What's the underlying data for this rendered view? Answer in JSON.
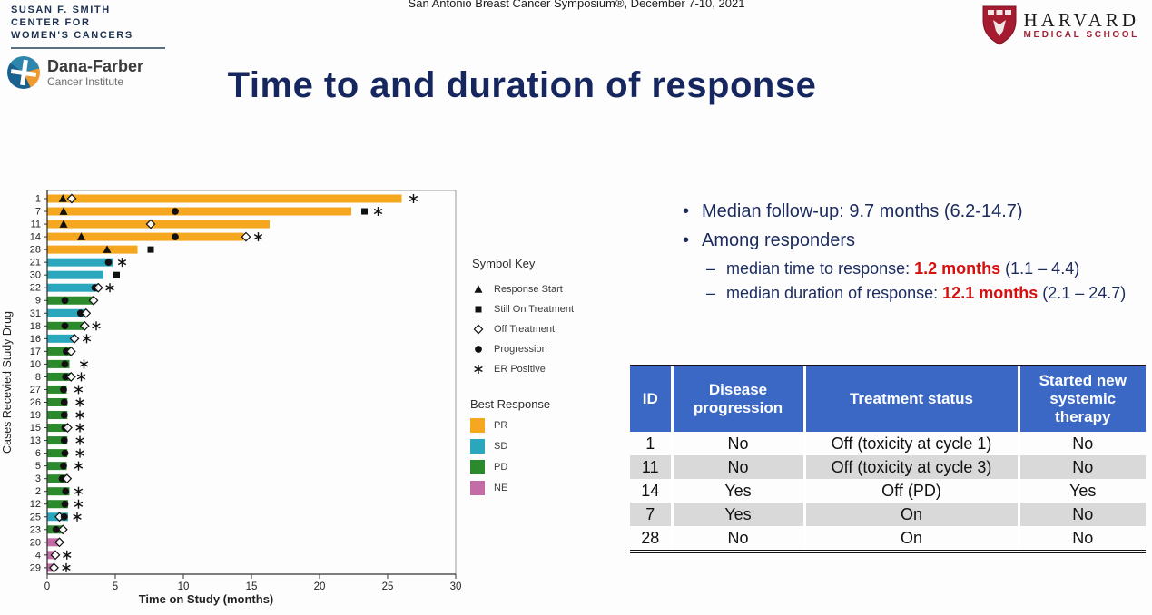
{
  "header": {
    "conference": "San Antonio Breast Cancer Symposium®, December 7-10, 2021",
    "title": "Time to and duration of response",
    "susan_lines": [
      "SUSAN F. SMITH",
      "CENTER FOR",
      "WOMEN'S CANCERS"
    ],
    "dana_farber": {
      "name": "Dana-Farber",
      "sub": "Cancer Institute"
    },
    "harvard": {
      "name": "HARVARD",
      "sub": "MEDICAL SCHOOL"
    }
  },
  "bullets": [
    {
      "lead": "•",
      "indent": false,
      "parts": [
        {
          "text": "Median follow-up:  9.7 months (6.2-14.7)",
          "style": "normal"
        }
      ]
    },
    {
      "lead": "•",
      "indent": false,
      "parts": [
        {
          "text": "Among responders",
          "style": "normal"
        }
      ]
    },
    {
      "lead": "–",
      "indent": true,
      "parts": [
        {
          "text": "median time to response:  ",
          "style": "normal"
        },
        {
          "text": "1.2 months",
          "style": "red-bold"
        },
        {
          "text": " (1.1 – 4.4)",
          "style": "normal"
        }
      ]
    },
    {
      "lead": "–",
      "indent": true,
      "parts": [
        {
          "text": "median duration of response:  ",
          "style": "normal"
        },
        {
          "text": "12.1 months",
          "style": "red-bold"
        },
        {
          "text": " (2.1 – 24.7)",
          "style": "normal"
        }
      ]
    }
  ],
  "symbol_key": {
    "title": "Symbol Key",
    "items": [
      {
        "marker": "triangle",
        "label": "Response Start"
      },
      {
        "marker": "square",
        "label": "Still On Treatment"
      },
      {
        "marker": "open-diamond",
        "label": "Off Treatment"
      },
      {
        "marker": "circle",
        "label": "Progression"
      },
      {
        "marker": "asterisk",
        "label": "ER Positive"
      }
    ]
  },
  "best_response": {
    "title": "Best Response",
    "items": [
      {
        "label": "PR",
        "color": "#F5A71F"
      },
      {
        "label": "SD",
        "color": "#2BA7BD"
      },
      {
        "label": "PD",
        "color": "#2B8A2B"
      },
      {
        "label": "NE",
        "color": "#C46CA6"
      }
    ]
  },
  "chart_data": {
    "type": "swimmer-bar",
    "xlabel": "Time on Study (months)",
    "ylabel": "Cases Recevied Study Drug",
    "xlim": [
      0,
      30
    ],
    "xticks": [
      0,
      5,
      10,
      15,
      20,
      25,
      30
    ],
    "colors": {
      "PR": "#F5A71F",
      "SD": "#2BA7BD",
      "PD": "#2B8A2B",
      "NE": "#C46CA6"
    },
    "rows": [
      {
        "id": "1",
        "response": "PR",
        "bar": 26.0,
        "markers": [
          {
            "t": "triangle",
            "x": 1.15
          },
          {
            "t": "open-diamond",
            "x": 1.8
          },
          {
            "t": "asterisk",
            "x": 26.9
          }
        ]
      },
      {
        "id": "7",
        "response": "PR",
        "bar": 22.3,
        "markers": [
          {
            "t": "triangle",
            "x": 1.2
          },
          {
            "t": "circle",
            "x": 9.4
          },
          {
            "t": "square",
            "x": 23.3
          },
          {
            "t": "asterisk",
            "x": 24.3
          }
        ]
      },
      {
        "id": "11",
        "response": "PR",
        "bar": 16.3,
        "markers": [
          {
            "t": "triangle",
            "x": 1.2
          },
          {
            "t": "open-diamond",
            "x": 7.6
          }
        ]
      },
      {
        "id": "14",
        "response": "PR",
        "bar": 14.4,
        "markers": [
          {
            "t": "triangle",
            "x": 2.5
          },
          {
            "t": "circle",
            "x": 9.4
          },
          {
            "t": "open-diamond",
            "x": 14.6
          },
          {
            "t": "asterisk",
            "x": 15.5
          }
        ]
      },
      {
        "id": "28",
        "response": "PR",
        "bar": 6.6,
        "markers": [
          {
            "t": "triangle",
            "x": 4.4
          },
          {
            "t": "square",
            "x": 7.6
          }
        ]
      },
      {
        "id": "21",
        "response": "SD",
        "bar": 4.8,
        "markers": [
          {
            "t": "circle",
            "x": 4.5
          },
          {
            "t": "asterisk",
            "x": 5.5
          }
        ]
      },
      {
        "id": "30",
        "response": "SD",
        "bar": 4.1,
        "markers": [
          {
            "t": "square",
            "x": 5.1
          }
        ]
      },
      {
        "id": "22",
        "response": "SD",
        "bar": 3.7,
        "markers": [
          {
            "t": "circle",
            "x": 3.5
          },
          {
            "t": "open-diamond",
            "x": 3.75
          },
          {
            "t": "asterisk",
            "x": 4.6
          }
        ]
      },
      {
        "id": "9",
        "response": "PD",
        "bar": 3.4,
        "markers": [
          {
            "t": "circle",
            "x": 1.3
          },
          {
            "t": "open-diamond",
            "x": 3.4
          }
        ]
      },
      {
        "id": "31",
        "response": "SD",
        "bar": 2.8,
        "markers": [
          {
            "t": "circle",
            "x": 2.45
          },
          {
            "t": "open-diamond",
            "x": 2.85
          }
        ]
      },
      {
        "id": "18",
        "response": "PD",
        "bar": 2.7,
        "markers": [
          {
            "t": "circle",
            "x": 1.3
          },
          {
            "t": "open-diamond",
            "x": 2.75
          },
          {
            "t": "asterisk",
            "x": 3.6
          }
        ]
      },
      {
        "id": "16",
        "response": "SD",
        "bar": 2.0,
        "markers": [
          {
            "t": "open-diamond",
            "x": 2.0
          },
          {
            "t": "asterisk",
            "x": 2.9
          }
        ]
      },
      {
        "id": "17",
        "response": "PD",
        "bar": 1.7,
        "markers": [
          {
            "t": "circle",
            "x": 1.4
          },
          {
            "t": "open-diamond",
            "x": 1.75
          }
        ]
      },
      {
        "id": "10",
        "response": "PD",
        "bar": 1.6,
        "markers": [
          {
            "t": "circle",
            "x": 1.3
          },
          {
            "t": "asterisk",
            "x": 2.7
          }
        ]
      },
      {
        "id": "8",
        "response": "PD",
        "bar": 1.7,
        "markers": [
          {
            "t": "circle",
            "x": 1.35
          },
          {
            "t": "open-diamond",
            "x": 1.75
          },
          {
            "t": "asterisk",
            "x": 2.5
          }
        ]
      },
      {
        "id": "27",
        "response": "PD",
        "bar": 1.4,
        "markers": [
          {
            "t": "circle",
            "x": 1.2
          },
          {
            "t": "asterisk",
            "x": 2.3
          }
        ]
      },
      {
        "id": "26",
        "response": "PD",
        "bar": 1.45,
        "markers": [
          {
            "t": "circle",
            "x": 1.25
          },
          {
            "t": "asterisk",
            "x": 2.4
          }
        ]
      },
      {
        "id": "19",
        "response": "PD",
        "bar": 1.45,
        "markers": [
          {
            "t": "circle",
            "x": 1.25
          },
          {
            "t": "asterisk",
            "x": 2.4
          }
        ]
      },
      {
        "id": "15",
        "response": "PD",
        "bar": 1.45,
        "markers": [
          {
            "t": "circle",
            "x": 1.3
          },
          {
            "t": "open-diamond",
            "x": 1.5
          },
          {
            "t": "asterisk",
            "x": 2.4
          }
        ]
      },
      {
        "id": "13",
        "response": "PD",
        "bar": 1.45,
        "markers": [
          {
            "t": "circle",
            "x": 1.25
          },
          {
            "t": "asterisk",
            "x": 2.4
          }
        ]
      },
      {
        "id": "6",
        "response": "PD",
        "bar": 1.45,
        "markers": [
          {
            "t": "circle",
            "x": 1.3
          },
          {
            "t": "asterisk",
            "x": 2.4
          }
        ]
      },
      {
        "id": "5",
        "response": "PD",
        "bar": 1.4,
        "markers": [
          {
            "t": "circle",
            "x": 1.2
          },
          {
            "t": "asterisk",
            "x": 2.3
          }
        ]
      },
      {
        "id": "3",
        "response": "PD",
        "bar": 1.4,
        "markers": [
          {
            "t": "circle",
            "x": 1.1
          },
          {
            "t": "open-diamond",
            "x": 1.45
          }
        ]
      },
      {
        "id": "2",
        "response": "PD",
        "bar": 1.6,
        "markers": [
          {
            "t": "circle",
            "x": 1.35
          },
          {
            "t": "asterisk",
            "x": 2.3
          }
        ]
      },
      {
        "id": "12",
        "response": "PD",
        "bar": 1.5,
        "markers": [
          {
            "t": "circle",
            "x": 1.3
          },
          {
            "t": "asterisk",
            "x": 2.3
          }
        ]
      },
      {
        "id": "25",
        "response": "SD",
        "bar": 1.5,
        "markers": [
          {
            "t": "open-diamond",
            "x": 0.9
          },
          {
            "t": "circle",
            "x": 1.25
          },
          {
            "t": "asterisk",
            "x": 2.2
          }
        ]
      },
      {
        "id": "23",
        "response": "PD",
        "bar": 1.1,
        "markers": [
          {
            "t": "circle",
            "x": 0.65
          },
          {
            "t": "open-diamond",
            "x": 1.15
          }
        ]
      },
      {
        "id": "20",
        "response": "NE",
        "bar": 0.85,
        "markers": [
          {
            "t": "open-diamond",
            "x": 0.9
          }
        ]
      },
      {
        "id": "4",
        "response": "NE",
        "bar": 0.55,
        "markers": [
          {
            "t": "open-diamond",
            "x": 0.6
          },
          {
            "t": "asterisk",
            "x": 1.45
          }
        ]
      },
      {
        "id": "29",
        "response": "NE",
        "bar": 0.4,
        "markers": [
          {
            "t": "open-diamond",
            "x": 0.5
          },
          {
            "t": "asterisk",
            "x": 1.4
          }
        ]
      }
    ]
  },
  "table": {
    "headers": [
      "ID",
      "Disease progression",
      "Treatment status",
      "Started new systemic therapy"
    ],
    "rows": [
      [
        "1",
        "No",
        "Off (toxicity at cycle 1)",
        "No"
      ],
      [
        "11",
        "No",
        "Off (toxicity at cycle 3)",
        "No"
      ],
      [
        "14",
        "Yes",
        "Off (PD)",
        "Yes"
      ],
      [
        "7",
        "Yes",
        "On",
        "No"
      ],
      [
        "28",
        "No",
        "On",
        "No"
      ]
    ]
  },
  "colors": {
    "title_navy": "#16265e",
    "bullet_navy": "#1b2b5e",
    "highlight_red": "#d70f0f",
    "table_header_blue": "#3a68c4",
    "table_shade_gray": "#d9d9d9"
  }
}
